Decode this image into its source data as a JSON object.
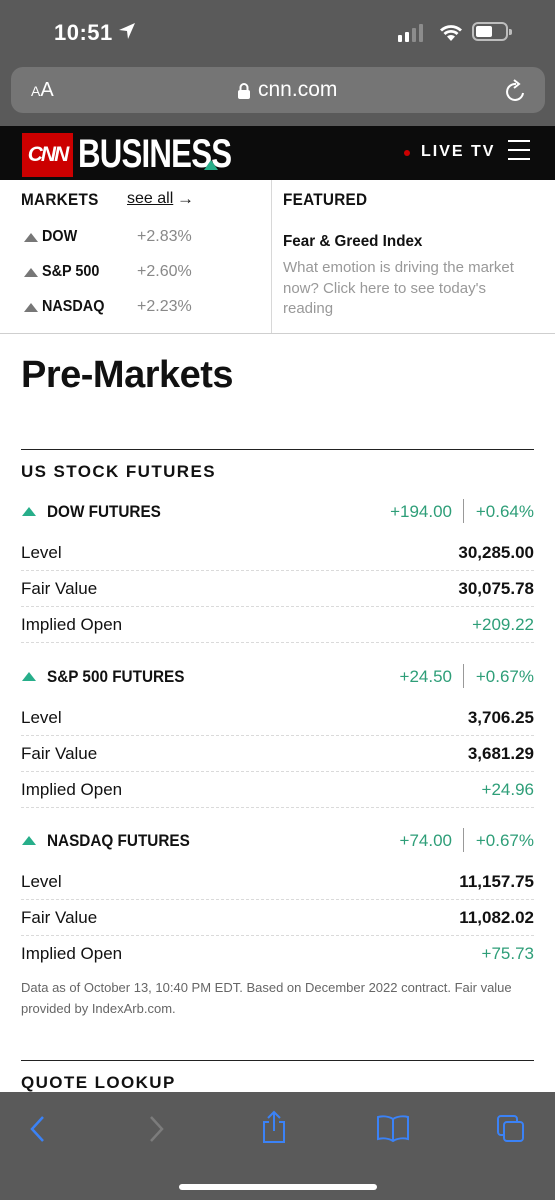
{
  "status_bar": {
    "time": "10:51"
  },
  "browser": {
    "aa_label_big": "A",
    "aa_label_small": "A",
    "url": "cnn.com"
  },
  "header": {
    "logo": "CNN",
    "section": "BUSINESS",
    "live_tv": "LIVE TV"
  },
  "markets": {
    "heading": "MARKETS",
    "see_all": "see all",
    "items": [
      {
        "name": "DOW",
        "change": "+2.83%"
      },
      {
        "name": "S&P 500",
        "change": "+2.60%"
      },
      {
        "name": "NASDAQ",
        "change": "+2.23%"
      }
    ]
  },
  "featured": {
    "heading": "FEATURED",
    "title": "Fear & Greed Index",
    "description": "What emotion is driving the market now? Click here to see today's reading"
  },
  "page": {
    "title": "Pre-Markets",
    "futures_section": "US STOCK FUTURES",
    "futures": [
      {
        "name": "DOW FUTURES",
        "change": "+194.00",
        "pct": "+0.64%",
        "rows": [
          {
            "label": "Level",
            "value": "30,285.00"
          },
          {
            "label": "Fair Value",
            "value": "30,075.78"
          },
          {
            "label": "Implied Open",
            "value": "+209.22"
          }
        ]
      },
      {
        "name": "S&P 500 FUTURES",
        "change": "+24.50",
        "pct": "+0.67%",
        "rows": [
          {
            "label": "Level",
            "value": "3,706.25"
          },
          {
            "label": "Fair Value",
            "value": "3,681.29"
          },
          {
            "label": "Implied Open",
            "value": "+24.96"
          }
        ]
      },
      {
        "name": "NASDAQ FUTURES",
        "change": "+74.00",
        "pct": "+0.67%",
        "rows": [
          {
            "label": "Level",
            "value": "11,157.75"
          },
          {
            "label": "Fair Value",
            "value": "11,082.02"
          },
          {
            "label": "Implied Open",
            "value": "+75.73"
          }
        ]
      }
    ],
    "footnote": "Data as of October 13, 10:40 PM EDT. Based on December 2022 contract. Fair value provided by IndexArb.com.",
    "quote_section": "QUOTE LOOKUP"
  },
  "colors": {
    "positive": "#2e9e78",
    "cnn_red": "#cc0000",
    "accent_teal": "#27ae8a",
    "ios_blue": "#3b82f6"
  },
  "icons": [
    "location-arrow-icon",
    "cellular-signal-icon",
    "wifi-icon",
    "battery-icon",
    "lock-icon",
    "reload-icon",
    "hamburger-icon",
    "back-icon",
    "forward-icon",
    "share-icon",
    "bookmarks-icon",
    "tabs-icon"
  ]
}
